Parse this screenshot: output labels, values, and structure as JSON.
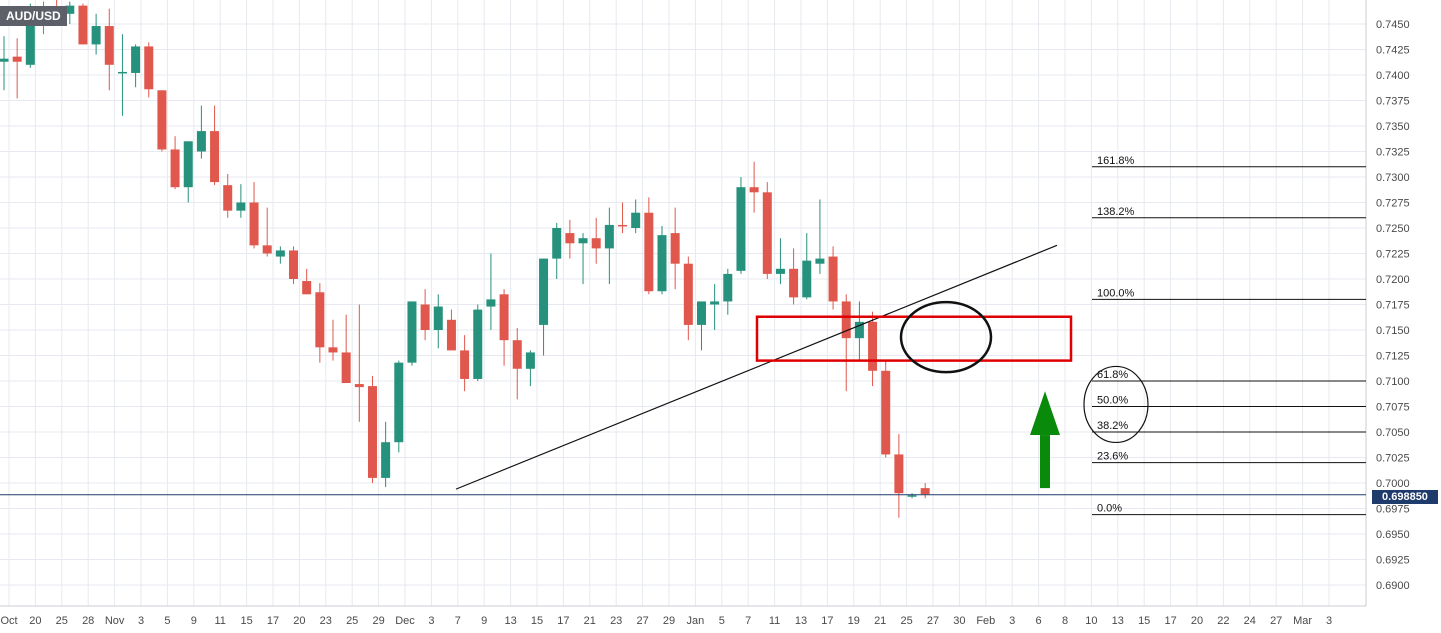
{
  "symbol": "AUD/USD",
  "current_price": "0.698850",
  "colors": {
    "bullish": "#26917c",
    "bearish": "#e0584d",
    "grid": "#e6e9ef",
    "trendline": "#111111",
    "box": "#e00000",
    "arrow": "#0a8a0a",
    "price_line": "#1f3b6b"
  },
  "chart_data": {
    "type": "candlestick",
    "title": "AUD/USD",
    "ylim": [
      0.689,
      0.7465
    ],
    "y_ticks": [
      "0.7450",
      "0.7425",
      "0.7400",
      "0.7375",
      "0.7350",
      "0.7325",
      "0.7300",
      "0.7275",
      "0.7250",
      "0.7225",
      "0.7200",
      "0.7175",
      "0.7150",
      "0.7125",
      "0.7100",
      "0.7075",
      "0.7050",
      "0.7025",
      "0.7000",
      "0.6975",
      "0.6950",
      "0.6925",
      "0.6900"
    ],
    "x_ticks": [
      "Oct",
      "20",
      "25",
      "28",
      "Nov",
      "3",
      "5",
      "9",
      "11",
      "15",
      "17",
      "20",
      "23",
      "25",
      "29",
      "Dec",
      "3",
      "7",
      "9",
      "13",
      "15",
      "17",
      "21",
      "23",
      "27",
      "29",
      "Jan",
      "5",
      "7",
      "11",
      "13",
      "17",
      "19",
      "21",
      "25",
      "27",
      "30",
      "Feb",
      "3",
      "6",
      "8",
      "10",
      "13",
      "15",
      "17",
      "20",
      "22",
      "24",
      "27",
      "Mar",
      "3"
    ],
    "candles": [
      {
        "o": 0.7413,
        "h": 0.7438,
        "l": 0.7385,
        "c": 0.7416
      },
      {
        "o": 0.7418,
        "h": 0.7436,
        "l": 0.7377,
        "c": 0.7413
      },
      {
        "o": 0.741,
        "h": 0.747,
        "l": 0.7407,
        "c": 0.7465
      },
      {
        "o": 0.7465,
        "h": 0.7472,
        "l": 0.744,
        "c": 0.7458
      },
      {
        "o": 0.7462,
        "h": 0.7475,
        "l": 0.7455,
        "c": 0.746
      },
      {
        "o": 0.746,
        "h": 0.7472,
        "l": 0.745,
        "c": 0.7468
      },
      {
        "o": 0.7468,
        "h": 0.747,
        "l": 0.743,
        "c": 0.743
      },
      {
        "o": 0.743,
        "h": 0.746,
        "l": 0.742,
        "c": 0.7448
      },
      {
        "o": 0.7448,
        "h": 0.7465,
        "l": 0.7385,
        "c": 0.741
      },
      {
        "o": 0.7402,
        "h": 0.744,
        "l": 0.736,
        "c": 0.7403
      },
      {
        "o": 0.7402,
        "h": 0.743,
        "l": 0.7388,
        "c": 0.7428
      },
      {
        "o": 0.7428,
        "h": 0.7432,
        "l": 0.7378,
        "c": 0.7386
      },
      {
        "o": 0.7385,
        "h": 0.7385,
        "l": 0.7325,
        "c": 0.7327
      },
      {
        "o": 0.7327,
        "h": 0.734,
        "l": 0.7288,
        "c": 0.729
      },
      {
        "o": 0.729,
        "h": 0.7335,
        "l": 0.7275,
        "c": 0.7335
      },
      {
        "o": 0.7325,
        "h": 0.737,
        "l": 0.7318,
        "c": 0.7345
      },
      {
        "o": 0.7345,
        "h": 0.737,
        "l": 0.7292,
        "c": 0.7295
      },
      {
        "o": 0.7292,
        "h": 0.7303,
        "l": 0.726,
        "c": 0.7267
      },
      {
        "o": 0.7267,
        "h": 0.7293,
        "l": 0.726,
        "c": 0.7275
      },
      {
        "o": 0.7275,
        "h": 0.7295,
        "l": 0.723,
        "c": 0.7233
      },
      {
        "o": 0.7233,
        "h": 0.727,
        "l": 0.7222,
        "c": 0.7225
      },
      {
        "o": 0.7222,
        "h": 0.7232,
        "l": 0.7215,
        "c": 0.7228
      },
      {
        "o": 0.7228,
        "h": 0.7232,
        "l": 0.7195,
        "c": 0.72
      },
      {
        "o": 0.7198,
        "h": 0.721,
        "l": 0.7185,
        "c": 0.7185
      },
      {
        "o": 0.7187,
        "h": 0.7196,
        "l": 0.7118,
        "c": 0.7133
      },
      {
        "o": 0.7133,
        "h": 0.716,
        "l": 0.712,
        "c": 0.7128
      },
      {
        "o": 0.7128,
        "h": 0.7165,
        "l": 0.71,
        "c": 0.7098
      },
      {
        "o": 0.7097,
        "h": 0.7175,
        "l": 0.706,
        "c": 0.7094
      },
      {
        "o": 0.7095,
        "h": 0.7105,
        "l": 0.7,
        "c": 0.7005
      },
      {
        "o": 0.7005,
        "h": 0.706,
        "l": 0.6996,
        "c": 0.704
      },
      {
        "o": 0.704,
        "h": 0.712,
        "l": 0.703,
        "c": 0.7118
      },
      {
        "o": 0.7118,
        "h": 0.7178,
        "l": 0.7115,
        "c": 0.7178
      },
      {
        "o": 0.7175,
        "h": 0.719,
        "l": 0.714,
        "c": 0.715
      },
      {
        "o": 0.715,
        "h": 0.7185,
        "l": 0.7132,
        "c": 0.7173
      },
      {
        "o": 0.716,
        "h": 0.717,
        "l": 0.713,
        "c": 0.713
      },
      {
        "o": 0.713,
        "h": 0.7145,
        "l": 0.709,
        "c": 0.7102
      },
      {
        "o": 0.7102,
        "h": 0.7175,
        "l": 0.71,
        "c": 0.717
      },
      {
        "o": 0.7173,
        "h": 0.7225,
        "l": 0.715,
        "c": 0.718
      },
      {
        "o": 0.7185,
        "h": 0.719,
        "l": 0.7115,
        "c": 0.714
      },
      {
        "o": 0.714,
        "h": 0.7152,
        "l": 0.7082,
        "c": 0.7112
      },
      {
        "o": 0.7112,
        "h": 0.713,
        "l": 0.7095,
        "c": 0.7128
      },
      {
        "o": 0.7155,
        "h": 0.722,
        "l": 0.7125,
        "c": 0.722
      },
      {
        "o": 0.722,
        "h": 0.7255,
        "l": 0.72,
        "c": 0.725
      },
      {
        "o": 0.7245,
        "h": 0.7258,
        "l": 0.722,
        "c": 0.7235
      },
      {
        "o": 0.7235,
        "h": 0.7245,
        "l": 0.7195,
        "c": 0.724
      },
      {
        "o": 0.724,
        "h": 0.726,
        "l": 0.7215,
        "c": 0.723
      },
      {
        "o": 0.723,
        "h": 0.727,
        "l": 0.7195,
        "c": 0.7253
      },
      {
        "o": 0.7253,
        "h": 0.7275,
        "l": 0.7245,
        "c": 0.7252
      },
      {
        "o": 0.725,
        "h": 0.7278,
        "l": 0.7245,
        "c": 0.7265
      },
      {
        "o": 0.7265,
        "h": 0.728,
        "l": 0.7185,
        "c": 0.7188
      },
      {
        "o": 0.7188,
        "h": 0.7252,
        "l": 0.7185,
        "c": 0.7243
      },
      {
        "o": 0.7245,
        "h": 0.727,
        "l": 0.719,
        "c": 0.7215
      },
      {
        "o": 0.7215,
        "h": 0.7222,
        "l": 0.714,
        "c": 0.7155
      },
      {
        "o": 0.7155,
        "h": 0.7175,
        "l": 0.713,
        "c": 0.7178
      },
      {
        "o": 0.7175,
        "h": 0.7195,
        "l": 0.715,
        "c": 0.7178
      },
      {
        "o": 0.7178,
        "h": 0.721,
        "l": 0.7165,
        "c": 0.7205
      },
      {
        "o": 0.7208,
        "h": 0.73,
        "l": 0.7205,
        "c": 0.729
      },
      {
        "o": 0.729,
        "h": 0.7315,
        "l": 0.7265,
        "c": 0.7285
      },
      {
        "o": 0.7285,
        "h": 0.7295,
        "l": 0.72,
        "c": 0.7205
      },
      {
        "o": 0.7205,
        "h": 0.724,
        "l": 0.7195,
        "c": 0.721
      },
      {
        "o": 0.721,
        "h": 0.723,
        "l": 0.7175,
        "c": 0.7182
      },
      {
        "o": 0.7182,
        "h": 0.7245,
        "l": 0.718,
        "c": 0.7218
      },
      {
        "o": 0.7215,
        "h": 0.7278,
        "l": 0.7205,
        "c": 0.722
      },
      {
        "o": 0.7222,
        "h": 0.7232,
        "l": 0.717,
        "c": 0.7178
      },
      {
        "o": 0.7178,
        "h": 0.7185,
        "l": 0.709,
        "c": 0.7142
      },
      {
        "o": 0.7142,
        "h": 0.7178,
        "l": 0.712,
        "c": 0.7158
      },
      {
        "o": 0.7158,
        "h": 0.7168,
        "l": 0.7095,
        "c": 0.711
      },
      {
        "o": 0.711,
        "h": 0.712,
        "l": 0.7025,
        "c": 0.7028
      },
      {
        "o": 0.7028,
        "h": 0.7048,
        "l": 0.6966,
        "c": 0.699
      },
      {
        "o": 0.6988,
        "h": 0.699,
        "l": 0.6985,
        "c": 0.6988
      },
      {
        "o": 0.6995,
        "h": 0.7,
        "l": 0.6985,
        "c": 0.6989
      }
    ],
    "fibonacci": [
      {
        "label": "161.8%",
        "price": 0.731
      },
      {
        "label": "138.2%",
        "price": 0.726
      },
      {
        "label": "100.0%",
        "price": 0.718
      },
      {
        "label": "61.8%",
        "price": 0.71
      },
      {
        "label": "50.0%",
        "price": 0.7075
      },
      {
        "label": "38.2%",
        "price": 0.705
      },
      {
        "label": "23.6%",
        "price": 0.702
      },
      {
        "label": "0.0%",
        "price": 0.6969
      }
    ]
  }
}
